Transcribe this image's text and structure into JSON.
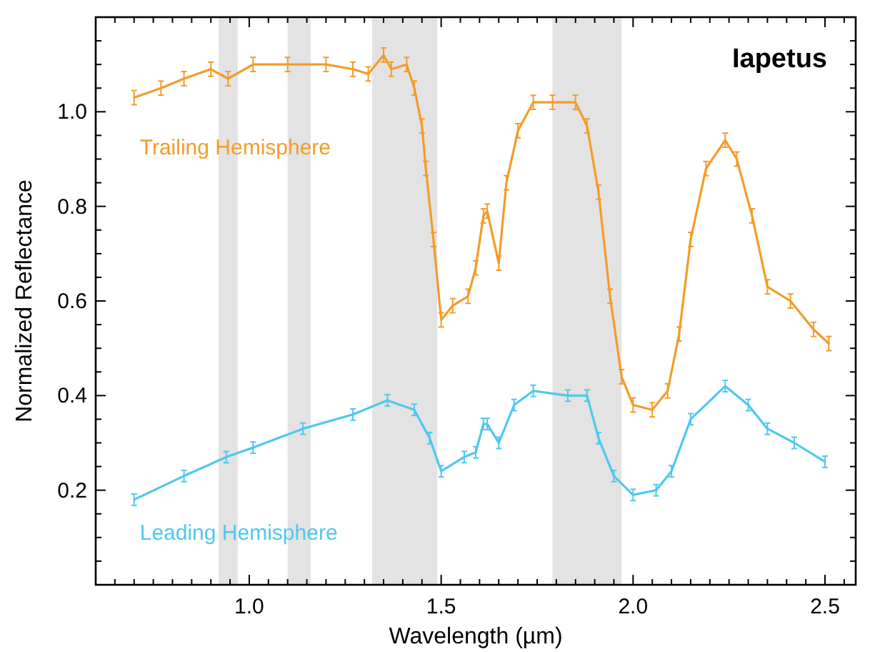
{
  "chart_data": {
    "type": "line",
    "title": "Iapetus",
    "xlabel": "Wavelength (µm)",
    "ylabel": "Normalized Reflectance",
    "xlim": [
      0.6,
      2.58
    ],
    "ylim": [
      0,
      1.2
    ],
    "xticks": [
      {
        "value": 0.65,
        "label": null
      },
      {
        "value": 0.7,
        "label": null
      },
      {
        "value": 0.75,
        "label": null
      },
      {
        "value": 0.8,
        "label": null
      },
      {
        "value": 0.85,
        "label": null
      },
      {
        "value": 0.9,
        "label": null
      },
      {
        "value": 0.95,
        "label": null
      },
      {
        "value": 1,
        "label": "1.0"
      },
      {
        "value": 1.05,
        "label": null
      },
      {
        "value": 1.1,
        "label": null
      },
      {
        "value": 1.15,
        "label": null
      },
      {
        "value": 1.2,
        "label": null
      },
      {
        "value": 1.25,
        "label": null
      },
      {
        "value": 1.3,
        "label": null
      },
      {
        "value": 1.35,
        "label": null
      },
      {
        "value": 1.4,
        "label": null
      },
      {
        "value": 1.45,
        "label": null
      },
      {
        "value": 1.5,
        "label": "1.5"
      },
      {
        "value": 1.55,
        "label": null
      },
      {
        "value": 1.6,
        "label": null
      },
      {
        "value": 1.65,
        "label": null
      },
      {
        "value": 1.7,
        "label": null
      },
      {
        "value": 1.75,
        "label": null
      },
      {
        "value": 1.8,
        "label": null
      },
      {
        "value": 1.85,
        "label": null
      },
      {
        "value": 1.9,
        "label": null
      },
      {
        "value": 1.95,
        "label": null
      },
      {
        "value": 2,
        "label": "2.0"
      },
      {
        "value": 2.05,
        "label": null
      },
      {
        "value": 2.1,
        "label": null
      },
      {
        "value": 2.15,
        "label": null
      },
      {
        "value": 2.2,
        "label": null
      },
      {
        "value": 2.25,
        "label": null
      },
      {
        "value": 2.3,
        "label": null
      },
      {
        "value": 2.35,
        "label": null
      },
      {
        "value": 2.4,
        "label": null
      },
      {
        "value": 2.45,
        "label": null
      },
      {
        "value": 2.5,
        "label": "2.5"
      },
      {
        "value": 2.55,
        "label": null
      }
    ],
    "yticks": [
      {
        "value": 0.05,
        "label": null
      },
      {
        "value": 0.1,
        "label": null
      },
      {
        "value": 0.15,
        "label": null
      },
      {
        "value": 0.2,
        "label": "0.2"
      },
      {
        "value": 0.25,
        "label": null
      },
      {
        "value": 0.3,
        "label": null
      },
      {
        "value": 0.35,
        "label": null
      },
      {
        "value": 0.4,
        "label": "0.4"
      },
      {
        "value": 0.45,
        "label": null
      },
      {
        "value": 0.5,
        "label": null
      },
      {
        "value": 0.55,
        "label": null
      },
      {
        "value": 0.6,
        "label": "0.6"
      },
      {
        "value": 0.65,
        "label": null
      },
      {
        "value": 0.7,
        "label": null
      },
      {
        "value": 0.75,
        "label": null
      },
      {
        "value": 0.8,
        "label": "0.8"
      },
      {
        "value": 0.85,
        "label": null
      },
      {
        "value": 0.9,
        "label": null
      },
      {
        "value": 0.95,
        "label": null
      },
      {
        "value": 1,
        "label": "1.0"
      },
      {
        "value": 1.05,
        "label": null
      },
      {
        "value": 1.1,
        "label": null
      },
      {
        "value": 1.15,
        "label": null
      }
    ],
    "bands": [
      {
        "axis": "x",
        "from": 0.92,
        "to": 0.97,
        "color": "#e3e3e3"
      },
      {
        "axis": "x",
        "from": 1.1,
        "to": 1.16,
        "color": "#e3e3e3"
      },
      {
        "axis": "x",
        "from": 1.32,
        "to": 1.49,
        "color": "#e3e3e3"
      },
      {
        "axis": "x",
        "from": 1.79,
        "to": 1.97,
        "color": "#e3e3e3"
      }
    ],
    "grid": false,
    "marker": "none",
    "line_style": "solid",
    "series": [
      {
        "name": "Trailing Hemisphere",
        "color": "#f39c2a",
        "x": [
          0.7,
          0.77,
          0.83,
          0.9,
          0.945,
          1.01,
          1.1,
          1.2,
          1.27,
          1.31,
          1.35,
          1.37,
          1.41,
          1.43,
          1.45,
          1.46,
          1.48,
          1.5,
          1.53,
          1.57,
          1.59,
          1.61,
          1.62,
          1.65,
          1.67,
          1.7,
          1.74,
          1.79,
          1.85,
          1.88,
          1.91,
          1.94,
          1.97,
          2.0,
          2.05,
          2.09,
          2.12,
          2.15,
          2.19,
          2.24,
          2.27,
          2.31,
          2.35,
          2.41,
          2.47,
          2.51
        ],
        "values": [
          1.03,
          1.05,
          1.07,
          1.09,
          1.07,
          1.1,
          1.1,
          1.1,
          1.09,
          1.08,
          1.12,
          1.09,
          1.1,
          1.05,
          0.97,
          0.88,
          0.73,
          0.56,
          0.59,
          0.61,
          0.67,
          0.78,
          0.79,
          0.68,
          0.85,
          0.96,
          1.02,
          1.02,
          1.02,
          0.97,
          0.83,
          0.61,
          0.44,
          0.38,
          0.37,
          0.41,
          0.53,
          0.73,
          0.88,
          0.94,
          0.9,
          0.78,
          0.63,
          0.6,
          0.54,
          0.51
        ],
        "errors": [
          0.015,
          0.015,
          0.015,
          0.015,
          0.015,
          0.015,
          0.015,
          0.015,
          0.015,
          0.015,
          0.015,
          0.015,
          0.015,
          0.015,
          0.015,
          0.015,
          0.015,
          0.015,
          0.015,
          0.015,
          0.015,
          0.015,
          0.015,
          0.015,
          0.015,
          0.015,
          0.015,
          0.015,
          0.015,
          0.015,
          0.015,
          0.015,
          0.015,
          0.015,
          0.015,
          0.015,
          0.015,
          0.015,
          0.015,
          0.015,
          0.015,
          0.015,
          0.015,
          0.015,
          0.015,
          0.015
        ]
      },
      {
        "name": "Leading Hemisphere",
        "color": "#4fc8ee",
        "x": [
          0.7,
          0.83,
          0.94,
          1.01,
          1.14,
          1.27,
          1.36,
          1.43,
          1.47,
          1.5,
          1.56,
          1.59,
          1.61,
          1.62,
          1.65,
          1.69,
          1.74,
          1.83,
          1.88,
          1.91,
          1.95,
          2.0,
          2.06,
          2.1,
          2.15,
          2.24,
          2.3,
          2.35,
          2.42,
          2.5
        ],
        "values": [
          0.18,
          0.23,
          0.27,
          0.29,
          0.33,
          0.36,
          0.39,
          0.37,
          0.31,
          0.24,
          0.27,
          0.28,
          0.34,
          0.34,
          0.3,
          0.38,
          0.41,
          0.4,
          0.4,
          0.31,
          0.23,
          0.19,
          0.2,
          0.24,
          0.35,
          0.42,
          0.38,
          0.33,
          0.3,
          0.26
        ],
        "errors": [
          0.012,
          0.012,
          0.012,
          0.012,
          0.012,
          0.012,
          0.012,
          0.012,
          0.012,
          0.012,
          0.012,
          0.012,
          0.012,
          0.012,
          0.012,
          0.012,
          0.012,
          0.012,
          0.012,
          0.012,
          0.012,
          0.012,
          0.012,
          0.012,
          0.012,
          0.012,
          0.012,
          0.012,
          0.012,
          0.012
        ]
      }
    ]
  }
}
